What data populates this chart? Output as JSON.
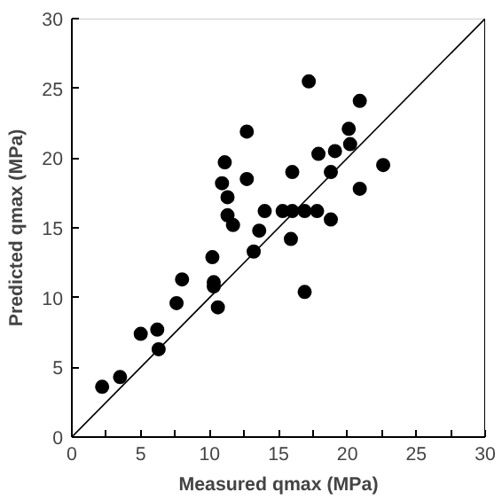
{
  "chart_data": {
    "type": "scatter",
    "xlabel": "Measured qmax (MPa)",
    "ylabel": "Predicted qmax (MPa)",
    "xlim": [
      0,
      30
    ],
    "ylim": [
      0,
      30
    ],
    "xticks": [
      0,
      {
        "value": 2.5,
        "label": null
      },
      5,
      {
        "value": 7.5,
        "label": null
      },
      10,
      {
        "value": 12.5,
        "label": null
      },
      15,
      {
        "value": 17.5,
        "label": null
      },
      20,
      {
        "value": 22.5,
        "label": null
      },
      25,
      {
        "value": 27.5,
        "label": null
      },
      30
    ],
    "yticks": [
      0,
      5,
      10,
      15,
      20,
      25,
      30
    ],
    "grid": false,
    "series": [
      {
        "color": "#000000",
        "marker": "circle",
        "x": [
          2.2,
          3.5,
          5.0,
          6.2,
          6.3,
          7.6,
          8.0,
          10.2,
          10.3,
          10.3,
          10.6,
          10.9,
          11.1,
          11.3,
          11.3,
          11.7,
          12.7,
          12.7,
          13.2,
          13.6,
          14.0,
          15.3,
          15.9,
          16.0,
          16.0,
          16.9,
          16.9,
          17.2,
          17.8,
          17.9,
          18.8,
          18.8,
          19.1,
          20.1,
          20.2,
          20.9,
          20.9,
          22.6
        ],
        "values": [
          3.6,
          4.3,
          7.4,
          7.7,
          6.3,
          9.6,
          11.3,
          12.9,
          11.1,
          10.8,
          9.3,
          18.2,
          19.7,
          17.2,
          15.9,
          15.2,
          21.9,
          18.5,
          13.3,
          14.8,
          16.2,
          16.2,
          14.2,
          19.0,
          16.2,
          16.2,
          10.4,
          25.5,
          16.2,
          20.3,
          19.0,
          15.6,
          20.5,
          22.1,
          21.0,
          24.1,
          17.8,
          19.5
        ]
      },
      {
        "type": "line",
        "color": "#000000",
        "x": [
          0,
          30
        ],
        "values": [
          0,
          30
        ]
      }
    ]
  }
}
